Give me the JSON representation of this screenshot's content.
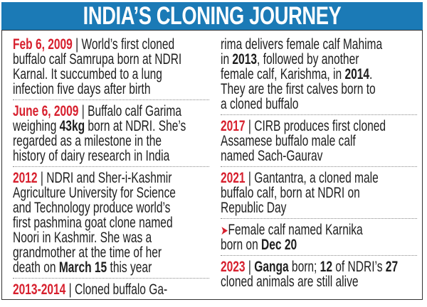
{
  "header": {
    "title": "INDIA’S CLONING JOURNEY",
    "background_color": "#1b7ab6"
  },
  "colors": {
    "accent_red": "#d7202e",
    "text": "#1e1e1e"
  },
  "columns": [
    {
      "entries": [
        {
          "lines": [
            [
              {
                "t": "Feb 6, 2009",
                "s": "r"
              },
              {
                "t": " | World’s first cloned",
                "s": "n"
              }
            ],
            [
              {
                "t": "buffalo calf Samrupa born at NDRI",
                "s": "n"
              }
            ],
            [
              {
                "t": "Karnal. It succumbed to a lung",
                "s": "n"
              }
            ],
            [
              {
                "t": "infection five days after birth",
                "s": "n"
              }
            ]
          ]
        },
        {
          "lines": [
            [
              {
                "t": "June 6, 2009",
                "s": "r"
              },
              {
                "t": " | Buffalo calf Garima",
                "s": "n"
              }
            ],
            [
              {
                "t": "weighing ",
                "s": "n"
              },
              {
                "t": "43kg",
                "s": "b"
              },
              {
                "t": " born at NDRI. She’s",
                "s": "n"
              }
            ],
            [
              {
                "t": "regarded as a milestone in the",
                "s": "n"
              }
            ],
            [
              {
                "t": "history of dairy research in India",
                "s": "n"
              }
            ]
          ]
        },
        {
          "lines": [
            [
              {
                "t": "2012",
                "s": "r"
              },
              {
                "t": " | NDRI and Sher-i-Kashmir",
                "s": "n"
              }
            ],
            [
              {
                "t": "Agriculture University for Science",
                "s": "n"
              }
            ],
            [
              {
                "t": "and Technology produce world’s",
                "s": "n"
              }
            ],
            [
              {
                "t": "first pashmina goat clone named",
                "s": "n"
              }
            ],
            [
              {
                "t": "Noori in Kashmir. She was a",
                "s": "n"
              }
            ],
            [
              {
                "t": "grandmother at the time of her",
                "s": "n"
              }
            ],
            [
              {
                "t": "death on ",
                "s": "n"
              },
              {
                "t": "March 15",
                "s": "b"
              },
              {
                "t": " this year",
                "s": "n"
              }
            ]
          ]
        },
        {
          "lines": [
            [
              {
                "t": "2013-2014",
                "s": "r"
              },
              {
                "t": " | Cloned buffalo Ga-",
                "s": "n"
              }
            ]
          ]
        }
      ]
    },
    {
      "entries": [
        {
          "lines": [
            [
              {
                "t": "rima delivers female calf Mahima",
                "s": "n"
              }
            ],
            [
              {
                "t": "in ",
                "s": "n"
              },
              {
                "t": "2013",
                "s": "b"
              },
              {
                "t": ", followed by another",
                "s": "n"
              }
            ],
            [
              {
                "t": "female calf, Karishma, in ",
                "s": "n"
              },
              {
                "t": "2014",
                "s": "b"
              },
              {
                "t": ".",
                "s": "n"
              }
            ],
            [
              {
                "t": "They are the first calves born to",
                "s": "n"
              }
            ],
            [
              {
                "t": "a cloned buffalo",
                "s": "n"
              }
            ]
          ]
        },
        {
          "lines": [
            [
              {
                "t": "2017",
                "s": "r"
              },
              {
                "t": " | CIRB produces first cloned",
                "s": "n"
              }
            ],
            [
              {
                "t": "Assamese buffalo male calf",
                "s": "n"
              }
            ],
            [
              {
                "t": "named Sach-Gaurav",
                "s": "n"
              }
            ]
          ]
        },
        {
          "lines": [
            [
              {
                "t": "2021",
                "s": "r"
              },
              {
                "t": " | Gantantra, a cloned male",
                "s": "n"
              }
            ],
            [
              {
                "t": "buffalo calf, born at NDRI on",
                "s": "n"
              }
            ],
            [
              {
                "t": "Republic Day",
                "s": "n"
              }
            ]
          ]
        },
        {
          "bullet_icon": "arrow-right-icon",
          "lines": [
            [
              {
                "t": "Female calf named Karnika",
                "s": "n"
              }
            ],
            [
              {
                "t": "born on ",
                "s": "n"
              },
              {
                "t": "Dec 20",
                "s": "b"
              }
            ]
          ]
        },
        {
          "lines": [
            [
              {
                "t": "2023",
                "s": "r"
              },
              {
                "t": " | ",
                "s": "n"
              },
              {
                "t": "Ganga",
                "s": "b"
              },
              {
                "t": " born; ",
                "s": "n"
              },
              {
                "t": "12",
                "s": "b"
              },
              {
                "t": " of NDRI’s ",
                "s": "n"
              },
              {
                "t": "27",
                "s": "b"
              }
            ],
            [
              {
                "t": "cloned animals are still alive",
                "s": "n"
              }
            ]
          ]
        }
      ]
    }
  ]
}
